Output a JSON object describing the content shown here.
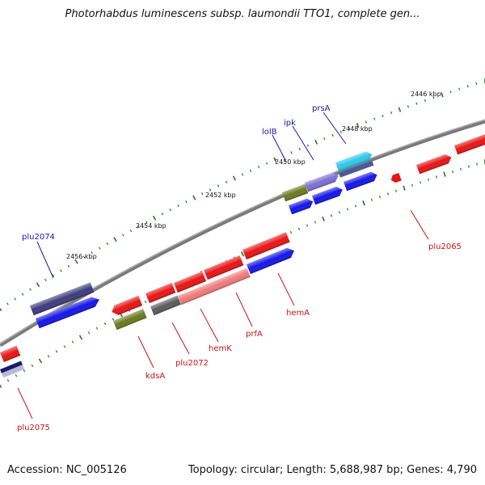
{
  "title": "Photorhabdus luminescens subsp. laumondii TTO1, complete gen...",
  "accession": "Accession: NC_005126",
  "topology": "Topology: circular; Length: 5,688,987 bp; Genes: 4,790",
  "colors": {
    "forward_label": "#1a1aa8",
    "reverse_label": "#c81414",
    "backbone": "#888888",
    "tick": "#1f7a1f"
  },
  "ticks": [
    "2446 kbp",
    "2448 kbp",
    "2450 kbp",
    "2452 kbp",
    "2454 kbp",
    "2456 kbp"
  ],
  "gene_labels": {
    "forward": [
      "plu2074",
      "lolB",
      "ipk",
      "prsA"
    ],
    "reverse": [
      "plu2075",
      "kdsA",
      "plu2072",
      "hemK",
      "prfA",
      "hemA",
      "plu2065"
    ]
  }
}
